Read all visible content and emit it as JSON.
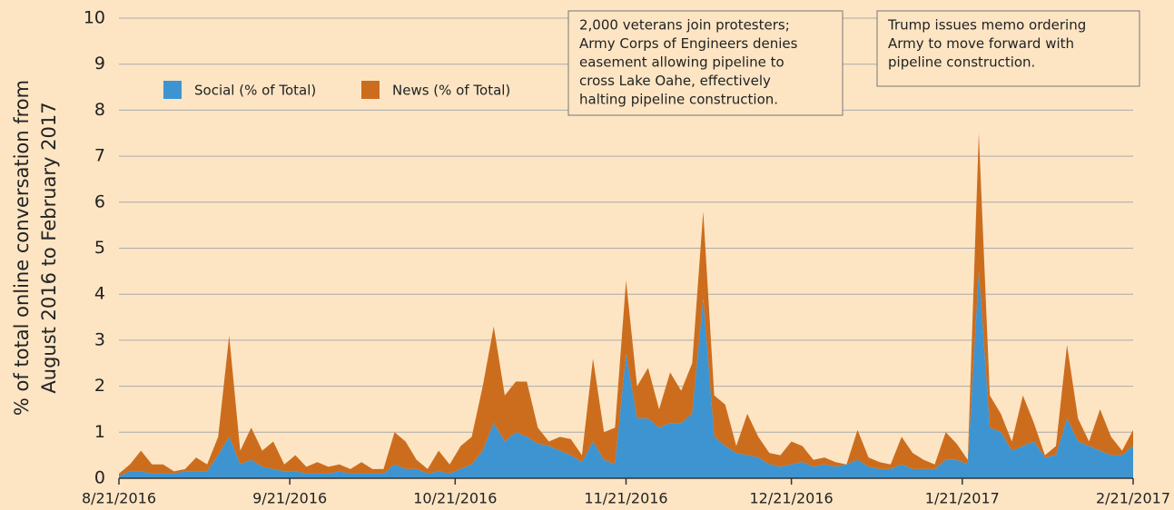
{
  "chart_data": {
    "type": "stacked_area",
    "y_label": [
      "% of total online conversation from",
      "August 2016 to February 2017"
    ],
    "x": [
      "8/21/2016",
      "8/23/2016",
      "8/25/2016",
      "8/27/2016",
      "8/29/2016",
      "8/31/2016",
      "9/2/2016",
      "9/4/2016",
      "9/6/2016",
      "9/8/2016",
      "9/10/2016",
      "9/12/2016",
      "9/14/2016",
      "9/16/2016",
      "9/18/2016",
      "9/20/2016",
      "9/22/2016",
      "9/24/2016",
      "9/26/2016",
      "9/28/2016",
      "9/30/2016",
      "10/2/2016",
      "10/4/2016",
      "10/6/2016",
      "10/8/2016",
      "10/10/2016",
      "10/12/2016",
      "10/14/2016",
      "10/16/2016",
      "10/18/2016",
      "10/20/2016",
      "10/22/2016",
      "10/24/2016",
      "10/26/2016",
      "10/28/2016",
      "10/30/2016",
      "11/1/2016",
      "11/3/2016",
      "11/5/2016",
      "11/7/2016",
      "11/9/2016",
      "11/11/2016",
      "11/13/2016",
      "11/15/2016",
      "11/17/2016",
      "11/19/2016",
      "11/21/2016",
      "11/23/2016",
      "11/25/2016",
      "11/27/2016",
      "11/29/2016",
      "12/1/2016",
      "12/3/2016",
      "12/5/2016",
      "12/7/2016",
      "12/9/2016",
      "12/11/2016",
      "12/13/2016",
      "12/15/2016",
      "12/17/2016",
      "12/19/2016",
      "12/21/2016",
      "12/23/2016",
      "12/25/2016",
      "12/27/2016",
      "12/29/2016",
      "12/31/2016",
      "1/2/2017",
      "1/4/2017",
      "1/6/2017",
      "1/8/2017",
      "1/10/2017",
      "1/12/2017",
      "1/14/2017",
      "1/16/2017",
      "1/18/2017",
      "1/20/2017",
      "1/22/2017",
      "1/24/2017",
      "1/26/2017",
      "1/28/2017",
      "1/30/2017",
      "2/1/2017",
      "2/3/2017",
      "2/5/2017",
      "2/7/2017",
      "2/9/2017",
      "2/11/2017",
      "2/13/2017",
      "2/15/2017",
      "2/17/2017",
      "2/19/2017",
      "2/21/2017"
    ],
    "series": [
      {
        "name": "Social (% of Total)",
        "color": "#3d94d1",
        "values": [
          0.05,
          0.15,
          0.15,
          0.1,
          0.1,
          0.1,
          0.15,
          0.15,
          0.15,
          0.5,
          0.9,
          0.3,
          0.4,
          0.25,
          0.2,
          0.15,
          0.15,
          0.1,
          0.1,
          0.1,
          0.15,
          0.1,
          0.1,
          0.1,
          0.1,
          0.3,
          0.2,
          0.2,
          0.1,
          0.15,
          0.1,
          0.2,
          0.3,
          0.6,
          1.2,
          0.8,
          1.0,
          0.9,
          0.75,
          0.7,
          0.6,
          0.5,
          0.35,
          0.8,
          0.4,
          0.3,
          2.7,
          1.3,
          1.3,
          1.1,
          1.2,
          1.2,
          1.4,
          3.9,
          0.9,
          0.7,
          0.55,
          0.5,
          0.45,
          0.3,
          0.25,
          0.3,
          0.35,
          0.25,
          0.3,
          0.25,
          0.3,
          0.4,
          0.25,
          0.2,
          0.2,
          0.3,
          0.2,
          0.2,
          0.2,
          0.4,
          0.4,
          0.3,
          4.5,
          1.1,
          1.0,
          0.6,
          0.7,
          0.8,
          0.45,
          0.5,
          1.3,
          0.8,
          0.7,
          0.6,
          0.5,
          0.5,
          0.7
        ]
      },
      {
        "name": "News (% of Total)",
        "color": "#cc6d1e",
        "values": [
          0.05,
          0.15,
          0.45,
          0.2,
          0.2,
          0.05,
          0.05,
          0.3,
          0.15,
          0.4,
          2.2,
          0.3,
          0.7,
          0.35,
          0.6,
          0.15,
          0.35,
          0.15,
          0.25,
          0.15,
          0.15,
          0.1,
          0.25,
          0.1,
          0.1,
          0.7,
          0.6,
          0.2,
          0.1,
          0.45,
          0.2,
          0.5,
          0.6,
          1.4,
          2.1,
          1.0,
          1.1,
          1.2,
          0.35,
          0.1,
          0.3,
          0.35,
          0.15,
          1.8,
          0.6,
          0.8,
          1.6,
          0.7,
          1.1,
          0.4,
          1.1,
          0.7,
          1.1,
          1.9,
          0.9,
          0.9,
          0.15,
          0.9,
          0.45,
          0.25,
          0.25,
          0.5,
          0.35,
          0.15,
          0.15,
          0.1,
          0,
          0.65,
          0.2,
          0.15,
          0.1,
          0.6,
          0.35,
          0.2,
          0.1,
          0.6,
          0.35,
          0.1,
          3.0,
          0.7,
          0.4,
          0.2,
          1.1,
          0.4,
          0.05,
          0.2,
          1.6,
          0.5,
          0.1,
          0.9,
          0.4,
          0.1,
          0.35
        ]
      }
    ],
    "xlim": [
      "8/21/2016",
      "2/21/2017"
    ],
    "xticks": [
      "8/21/2016",
      "9/21/2016",
      "10/21/2016",
      "11/21/2016",
      "12/21/2016",
      "1/21/2017",
      "2/21/2017"
    ],
    "ylim": [
      0,
      10
    ],
    "yticks": [
      0,
      1,
      2,
      3,
      4,
      5,
      6,
      7,
      8,
      9,
      10
    ],
    "grid": true,
    "annotations": [
      {
        "lines": [
          "2,000 veterans join protesters;",
          "Army Corps of Engineers denies",
          "easement allowing pipeline to",
          "cross Lake Oahe, effectively",
          "halting pipeline construction."
        ]
      },
      {
        "lines": [
          "Trump issues memo ordering",
          "Army to move forward with",
          "pipeline construction."
        ]
      }
    ]
  }
}
